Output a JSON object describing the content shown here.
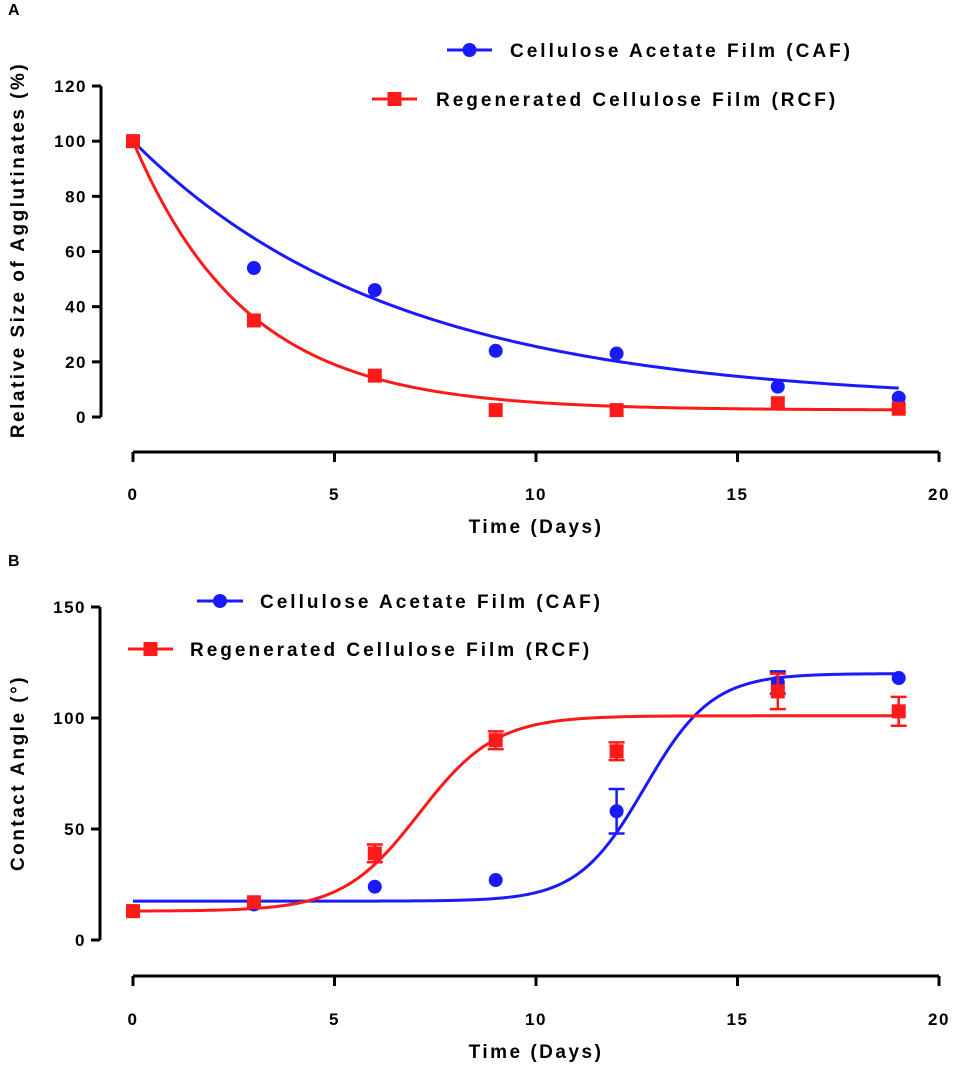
{
  "chart_data": [
    {
      "panel": "A",
      "type": "scatter",
      "xlabel": "Time (Days)",
      "ylabel": "Relative Size of Agglutinates (%)",
      "xlim": [
        0,
        20
      ],
      "ylim": [
        0,
        120
      ],
      "xticks": [
        0,
        5,
        10,
        15,
        20
      ],
      "yticks": [
        0,
        20,
        40,
        60,
        80,
        100,
        120
      ],
      "grid": false,
      "legend_position": "top-right",
      "series": [
        {
          "name": "Cellulose Acetate Film (CAF)",
          "color": "#1a1aff",
          "marker": "circle",
          "x": [
            0,
            3,
            6,
            9,
            12,
            16,
            19
          ],
          "y": [
            100,
            54,
            46,
            24,
            23,
            11,
            7
          ],
          "fit": {
            "model": "exponential_decay",
            "y0": 100,
            "plateau": 5.5,
            "k": 0.155
          }
        },
        {
          "name": "Regenerated Cellulose Film (RCF)",
          "color": "#ff1a1a",
          "marker": "square",
          "x": [
            0,
            3,
            6,
            9,
            12,
            16,
            19
          ],
          "y": [
            100,
            35,
            15,
            2.5,
            2.5,
            5,
            3
          ],
          "fit": {
            "model": "exponential_decay",
            "y0": 100,
            "plateau": 2.5,
            "k": 0.355
          }
        }
      ]
    },
    {
      "panel": "B",
      "type": "scatter",
      "xlabel": "Time (Days)",
      "ylabel": "Contact Angle (°)",
      "xlim": [
        0,
        20
      ],
      "ylim": [
        0,
        150
      ],
      "xticks": [
        0,
        5,
        10,
        15,
        20
      ],
      "yticks": [
        0,
        50,
        100,
        150
      ],
      "grid": false,
      "legend_position": "top-left",
      "series": [
        {
          "name": "Cellulose Acetate Film (CAF)",
          "color": "#1a1aff",
          "marker": "circle",
          "x": [
            0,
            3,
            6,
            9,
            12,
            16,
            19
          ],
          "y": [
            13,
            16,
            24,
            27,
            58,
            116,
            118
          ],
          "err": [
            0,
            0,
            0,
            0,
            10,
            5,
            0
          ],
          "fit": {
            "model": "sigmoid",
            "bottom": 17.5,
            "top": 120,
            "x50": 12.7,
            "k": 1.2
          }
        },
        {
          "name": "Regenerated Cellulose Film (RCF)",
          "color": "#ff1a1a",
          "marker": "square",
          "x": [
            0,
            3,
            6,
            9,
            12,
            16,
            19
          ],
          "y": [
            13,
            17,
            39,
            90,
            85,
            112,
            103
          ],
          "err": [
            0,
            0,
            4,
            4,
            4,
            8,
            6.5
          ],
          "fit": {
            "model": "sigmoid",
            "bottom": 13,
            "top": 101,
            "x50": 7.1,
            "k": 1.05
          }
        }
      ]
    }
  ]
}
